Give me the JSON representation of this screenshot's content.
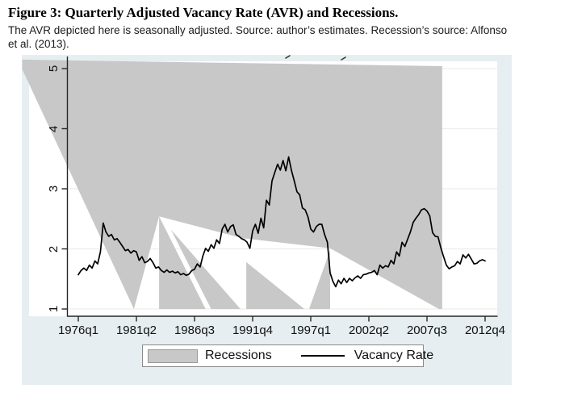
{
  "figure": {
    "title": "Figure 3: Quarterly Adjusted Vacancy Rate (AVR) and Recessions.",
    "caption_line1": "The AVR depicted here is  seasonally adjusted. Source: author’s estimates. Recession’s source: Alfonso",
    "caption_line2": "et al. (2013)."
  },
  "legend": {
    "recessions_label": "Recessions",
    "vacancy_label": "Vacancy Rate"
  },
  "colors": {
    "recession_fill": "#c8c8c8",
    "line": "#000000",
    "figure_bg": "#e7eef1",
    "plot_bg": "#ffffff",
    "gridline": "#eceded",
    "axis": "#262626"
  },
  "chart_data": {
    "type": "line",
    "title": "",
    "xlabel": "",
    "ylabel": "",
    "frequency": "quarterly",
    "x_start": "1976q1",
    "x_end": "2012q4",
    "ylim": [
      1,
      5
    ],
    "grid": true,
    "legend_position": "bottom",
    "x_ticks": [
      "1976q1",
      "1981q2",
      "1986q3",
      "1991q4",
      "1997q1",
      "2002q2",
      "2007q3",
      "2012q4"
    ],
    "x_tick_quarters": [
      0,
      21,
      42,
      63,
      84,
      105,
      126,
      147
    ],
    "y_ticks": [
      "1",
      "2",
      "3",
      "4",
      "5"
    ],
    "y_tick_values": [
      1,
      2,
      3,
      4,
      5
    ],
    "series": [
      {
        "name": "Vacancy Rate",
        "values": [
          1.57,
          1.64,
          1.68,
          1.64,
          1.73,
          1.68,
          1.8,
          1.75,
          1.95,
          2.43,
          2.28,
          2.21,
          2.24,
          2.15,
          2.17,
          2.11,
          2.04,
          1.97,
          1.99,
          1.93,
          1.97,
          1.95,
          1.81,
          1.87,
          1.77,
          1.79,
          1.84,
          1.77,
          1.68,
          1.7,
          1.64,
          1.61,
          1.65,
          1.61,
          1.63,
          1.6,
          1.62,
          1.57,
          1.59,
          1.56,
          1.58,
          1.64,
          1.66,
          1.75,
          1.7,
          1.88,
          2.01,
          1.96,
          2.07,
          2.01,
          2.15,
          2.09,
          2.33,
          2.41,
          2.28,
          2.37,
          2.4,
          2.24,
          2.21,
          2.17,
          2.15,
          2.11,
          2.01,
          2.3,
          2.41,
          2.26,
          2.51,
          2.35,
          2.81,
          2.73,
          3.13,
          3.27,
          3.41,
          3.31,
          3.47,
          3.3,
          3.53,
          3.31,
          3.14,
          2.95,
          2.9,
          2.68,
          2.65,
          2.53,
          2.33,
          2.28,
          2.37,
          2.41,
          2.41,
          2.24,
          2.11,
          1.6,
          1.46,
          1.37,
          1.48,
          1.42,
          1.51,
          1.44,
          1.51,
          1.47,
          1.52,
          1.55,
          1.51,
          1.57,
          1.58,
          1.6,
          1.61,
          1.64,
          1.57,
          1.73,
          1.68,
          1.72,
          1.7,
          1.81,
          1.75,
          1.95,
          1.88,
          2.11,
          2.04,
          2.16,
          2.28,
          2.44,
          2.51,
          2.57,
          2.65,
          2.67,
          2.63,
          2.55,
          2.27,
          2.21,
          2.2,
          2.02,
          1.87,
          1.73,
          1.67,
          1.7,
          1.72,
          1.79,
          1.75,
          1.9,
          1.85,
          1.91,
          1.83,
          1.75,
          1.76,
          1.8,
          1.82,
          1.8
        ]
      }
    ],
    "recession_shading_note": "shading rendered as sawtooth wedges as depicted; vertices in [quarter-index, value] units",
    "recession_shapes_qv": [
      [
        [
          -21.9,
          5.15
        ],
        [
          131.5,
          5.04
        ],
        [
          131.5,
          1.0
        ],
        [
          130.3,
          1.0
        ],
        [
          91.0,
          2.01
        ],
        [
          59.2,
          2.18
        ],
        [
          29.2,
          2.54
        ],
        [
          20.1,
          1.0
        ]
      ],
      [
        [
          29.2,
          2.54
        ],
        [
          29.2,
          1.0
        ],
        [
          46.0,
          1.0
        ]
      ],
      [
        [
          33.5,
          2.32
        ],
        [
          48.0,
          1.0
        ],
        [
          58.6,
          1.0
        ]
      ],
      [
        [
          60.7,
          1.78
        ],
        [
          60.7,
          1.0
        ],
        [
          81.7,
          1.0
        ]
      ],
      [
        [
          83.4,
          1.0
        ],
        [
          91.0,
          1.98
        ],
        [
          91.0,
          1.0
        ]
      ]
    ]
  }
}
